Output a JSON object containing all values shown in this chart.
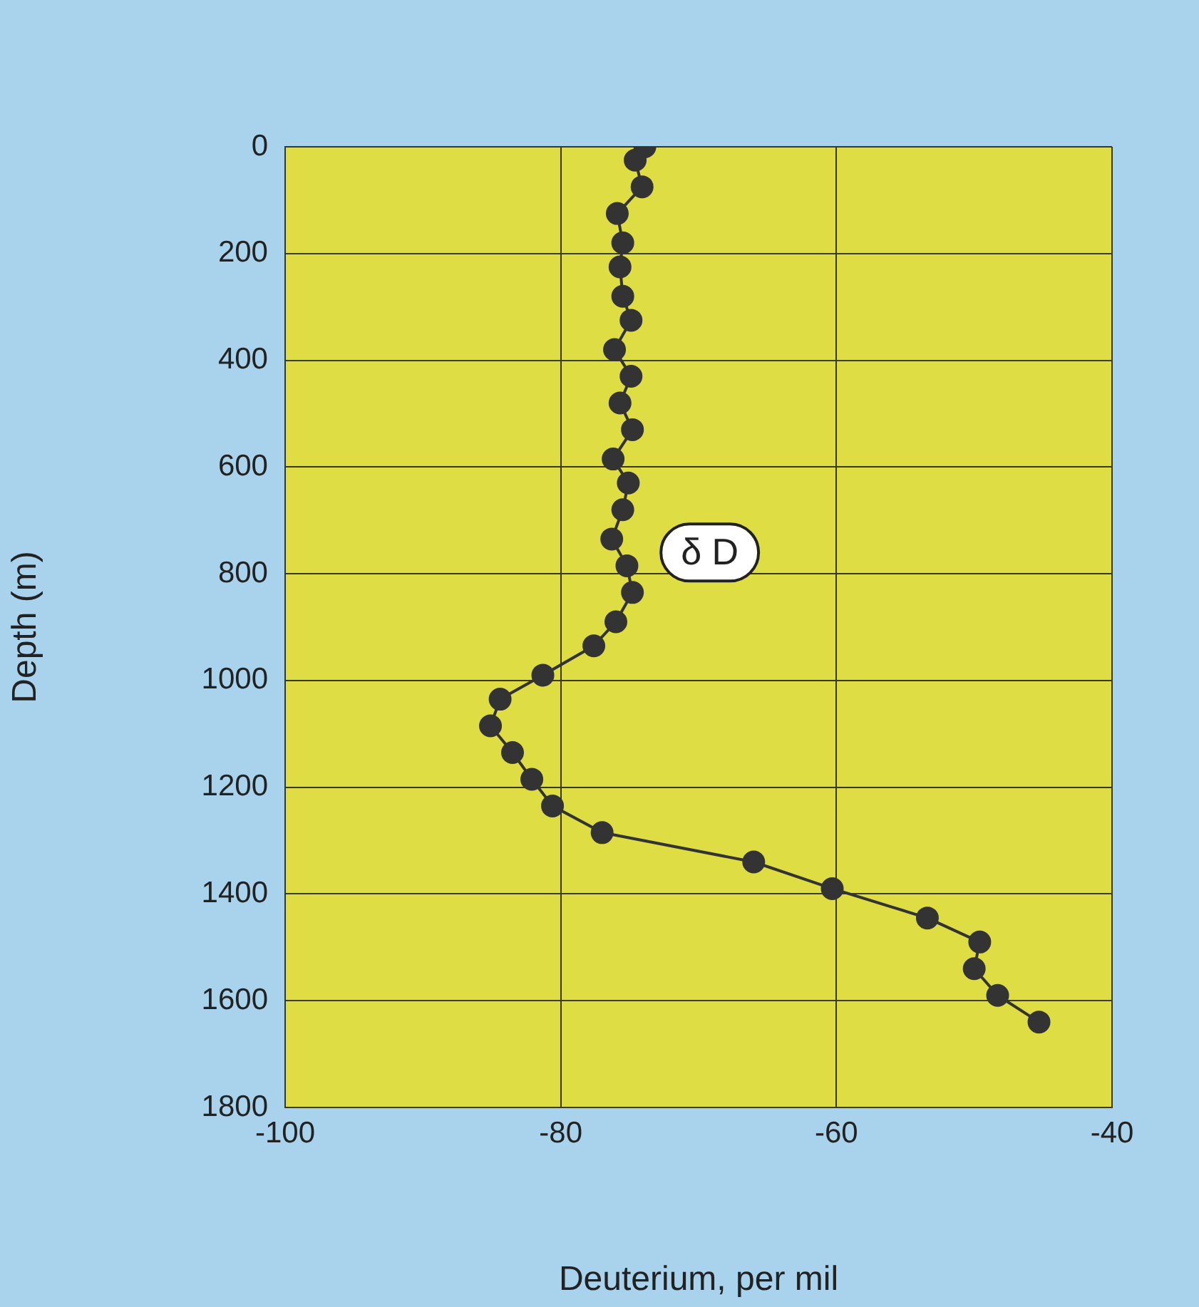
{
  "chart_data": {
    "type": "line",
    "xlabel": "Deuterium, per mil",
    "ylabel": "Depth (m)",
    "xlim": [
      -100,
      -40
    ],
    "xticks": [
      -100,
      -80,
      -60,
      -40
    ],
    "ylim": [
      1800,
      0
    ],
    "yticks": [
      0,
      200,
      400,
      600,
      800,
      1000,
      1200,
      1400,
      1600,
      1800
    ],
    "grid": true,
    "marker": "circle",
    "line_style": "solid",
    "series": [
      {
        "name": "δ D",
        "color": "#333333",
        "x": [
          -73.9,
          -74.6,
          -74.1,
          -75.9,
          -75.5,
          -75.7,
          -75.5,
          -74.9,
          -76.1,
          -74.9,
          -75.7,
          -74.8,
          -76.2,
          -75.1,
          -75.5,
          -76.3,
          -75.2,
          -74.8,
          -76.0,
          -77.6,
          -81.3,
          -84.4,
          -85.1,
          -83.5,
          -82.1,
          -80.6,
          -77.0,
          -66.0,
          -60.3,
          -53.4,
          -49.6,
          -50.0,
          -48.3,
          -45.3
        ],
        "values": [
          0,
          25,
          75,
          125,
          180,
          225,
          280,
          325,
          380,
          430,
          480,
          530,
          585,
          630,
          680,
          735,
          785,
          835,
          890,
          935,
          990,
          1035,
          1085,
          1135,
          1185,
          1235,
          1285,
          1340,
          1390,
          1445,
          1490,
          1540,
          1590,
          1640
        ]
      }
    ]
  }
}
